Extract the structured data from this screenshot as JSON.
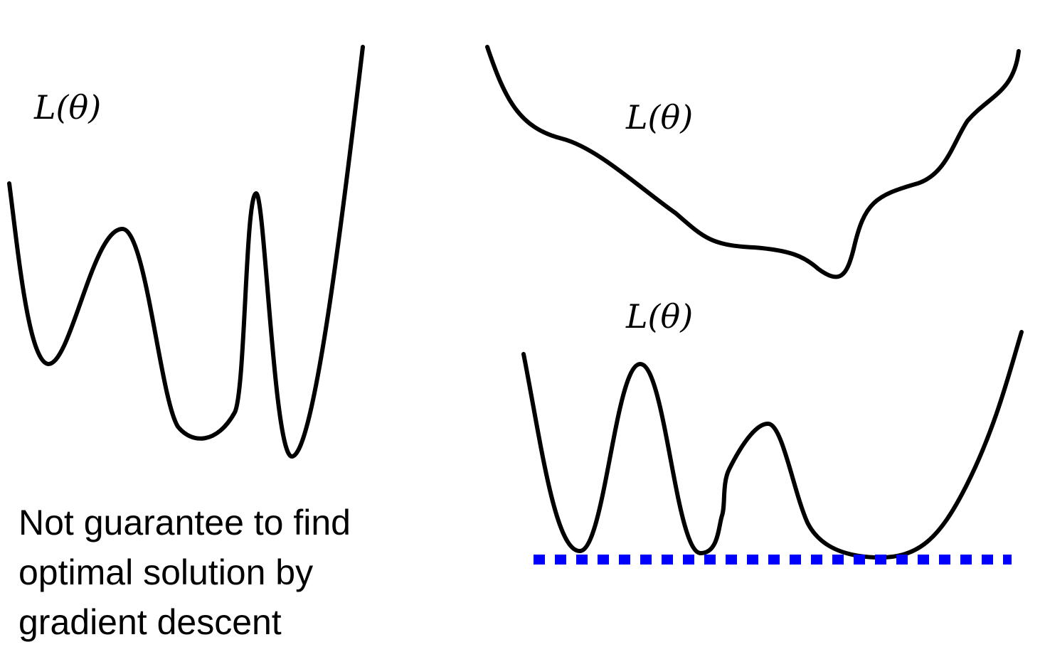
{
  "panels": {
    "left": {
      "label": "L(θ)"
    },
    "top_right": {
      "label": "L(θ)"
    },
    "bottom_right": {
      "label": "L(θ)"
    }
  },
  "caption": {
    "lines": [
      "Not guarantee to find",
      "optimal solution by",
      "gradient descent"
    ]
  },
  "colors": {
    "curve": "#000000",
    "baseline": "#0000ff"
  }
}
